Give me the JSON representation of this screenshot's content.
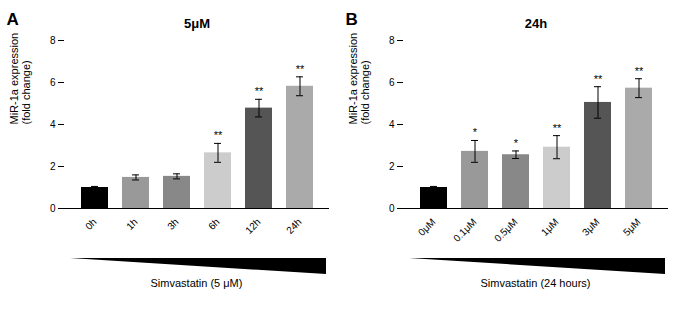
{
  "chart_data": [
    {
      "type": "bar",
      "title": "5μM",
      "panel_label": "A",
      "categories": [
        "0h",
        "1h",
        "3h",
        "6h",
        "12h",
        "24h"
      ],
      "values": [
        1.0,
        1.48,
        1.53,
        2.65,
        4.78,
        5.82
      ],
      "errors": [
        0.05,
        0.12,
        0.12,
        0.45,
        0.42,
        0.45
      ],
      "colors": [
        "#000000",
        "#999999",
        "#888888",
        "#cccccc",
        "#555555",
        "#aaaaaa"
      ],
      "significance": [
        null,
        null,
        null,
        "**",
        "**",
        "**"
      ],
      "xlabel": "Simvastatin (5 μM)",
      "ylabel": "MiR-1a expression\n(fold change)",
      "ylim": [
        0,
        8
      ],
      "yticks": [
        0,
        2,
        4,
        6,
        8
      ],
      "grid": false
    },
    {
      "type": "bar",
      "title": "24h",
      "panel_label": "B",
      "categories": [
        "0μM",
        "0.1μM",
        "0.5μM",
        "1μM",
        "3μM",
        "5μM"
      ],
      "values": [
        1.0,
        2.72,
        2.56,
        2.92,
        5.05,
        5.73
      ],
      "errors": [
        0.05,
        0.52,
        0.18,
        0.55,
        0.75,
        0.45
      ],
      "colors": [
        "#000000",
        "#999999",
        "#888888",
        "#cccccc",
        "#555555",
        "#aaaaaa"
      ],
      "significance": [
        null,
        "*",
        "*",
        "**",
        "**",
        "**"
      ],
      "xlabel": "Simvastatin (24 hours)",
      "ylabel": "MiR-1a expression\n(fold change)",
      "ylim": [
        0,
        8
      ],
      "yticks": [
        0,
        2,
        4,
        6,
        8
      ],
      "grid": false
    }
  ]
}
